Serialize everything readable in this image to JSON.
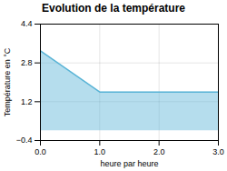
{
  "chart_data": {
    "type": "area",
    "title": "Evolution de la température",
    "xlabel": "heure par heure",
    "ylabel": "Température en °C",
    "x": [
      0,
      1,
      3
    ],
    "values": [
      3.3,
      1.6,
      1.6
    ],
    "color": "#5ab4d6",
    "xlim": [
      0,
      3
    ],
    "ylim": [
      -0.4,
      4.4
    ],
    "xticks": [
      0,
      1,
      2,
      3
    ],
    "yticks": [
      -0.4,
      1.2,
      2.8,
      4.4
    ],
    "grid": true
  }
}
